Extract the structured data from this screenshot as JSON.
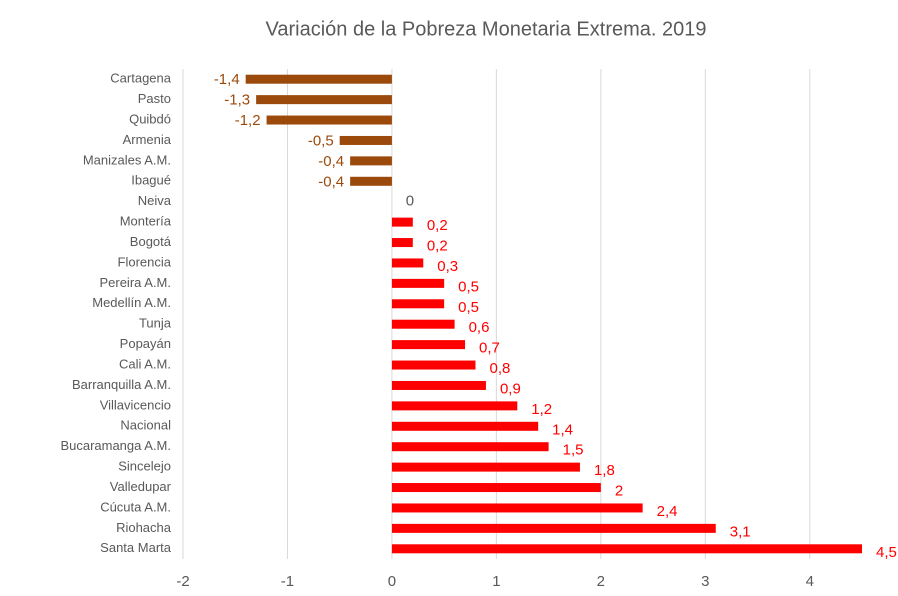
{
  "chart_data": {
    "type": "hbar",
    "title": "Variación de la Pobreza Monetaria Extrema. 2019",
    "categories": [
      "Cartagena",
      "Pasto",
      "Quibdó",
      "Armenia",
      "Manizales A.M.",
      "Ibagué",
      "Neiva",
      "Montería",
      "Bogotá",
      "Florencia",
      "Pereira A.M.",
      "Medellín A.M.",
      "Tunja",
      "Popayán",
      "Cali A.M.",
      "Barranquilla A.M.",
      "Villavicencio",
      "Nacional",
      "Bucaramanga A.M.",
      "Sincelejo",
      "Valledupar",
      "Cúcuta A.M.",
      "Riohacha",
      "Santa Marta"
    ],
    "values": [
      -1.4,
      -1.3,
      -1.2,
      -0.5,
      -0.4,
      -0.4,
      0,
      0.2,
      0.2,
      0.3,
      0.5,
      0.5,
      0.6,
      0.7,
      0.8,
      0.9,
      1.2,
      1.4,
      1.5,
      1.8,
      2,
      2.4,
      3.1,
      4.5
    ],
    "value_labels": [
      "-1,4",
      "-1,3",
      "-1,2",
      "-0,5",
      "-0,4",
      "-0,4",
      "0",
      "0,2",
      "0,2",
      "0,3",
      "0,5",
      "0,5",
      "0,6",
      "0,7",
      "0,8",
      "0,9",
      "1,2",
      "1,4",
      "1,5",
      "1,8",
      "2",
      "2,4",
      "3,1",
      "4,5"
    ],
    "colors": [
      "#9c4a0c",
      "#9c4a0c",
      "#9c4a0c",
      "#9c4a0c",
      "#9c4a0c",
      "#9c4a0c",
      "#595959",
      "#ff0000",
      "#ff0000",
      "#ff0000",
      "#ff0000",
      "#ff0000",
      "#ff0000",
      "#ff0000",
      "#ff0000",
      "#ff0000",
      "#ff0000",
      "#ff0000",
      "#ff0000",
      "#ff0000",
      "#ff0000",
      "#ff0000",
      "#ff0000",
      "#ff0000"
    ],
    "xlim": [
      -2,
      4.5
    ],
    "xticks": [
      -2,
      -1,
      0,
      1,
      2,
      3,
      4
    ],
    "grid": true
  }
}
